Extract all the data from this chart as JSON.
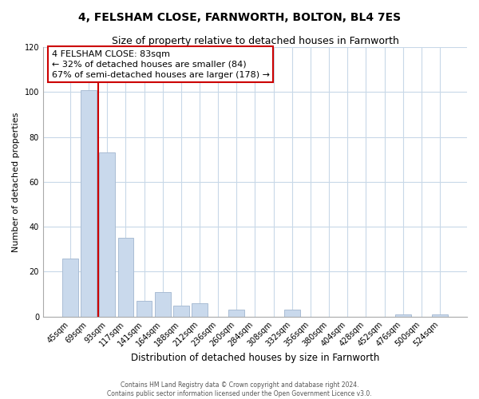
{
  "title": "4, FELSHAM CLOSE, FARNWORTH, BOLTON, BL4 7ES",
  "subtitle": "Size of property relative to detached houses in Farnworth",
  "xlabel": "Distribution of detached houses by size in Farnworth",
  "ylabel": "Number of detached properties",
  "bar_labels": [
    "45sqm",
    "69sqm",
    "93sqm",
    "117sqm",
    "141sqm",
    "164sqm",
    "188sqm",
    "212sqm",
    "236sqm",
    "260sqm",
    "284sqm",
    "308sqm",
    "332sqm",
    "356sqm",
    "380sqm",
    "404sqm",
    "428sqm",
    "452sqm",
    "476sqm",
    "500sqm",
    "524sqm"
  ],
  "bar_values": [
    26,
    101,
    73,
    35,
    7,
    11,
    5,
    6,
    0,
    3,
    0,
    0,
    3,
    0,
    0,
    0,
    0,
    0,
    1,
    0,
    1
  ],
  "bar_color": "#c9d9ec",
  "bar_edge_color": "#aabdd4",
  "vline_color": "#cc0000",
  "vline_x": 1.5,
  "ylim": [
    0,
    120
  ],
  "yticks": [
    0,
    20,
    40,
    60,
    80,
    100,
    120
  ],
  "annotation_title": "4 FELSHAM CLOSE: 83sqm",
  "annotation_line1": "← 32% of detached houses are smaller (84)",
  "annotation_line2": "67% of semi-detached houses are larger (178) →",
  "annotation_box_color": "#ffffff",
  "annotation_box_edge": "#cc0000",
  "footer1": "Contains HM Land Registry data © Crown copyright and database right 2024.",
  "footer2": "Contains public sector information licensed under the Open Government Licence v3.0.",
  "bg_color": "#ffffff",
  "grid_color": "#c8d8e8",
  "title_fontsize": 10,
  "subtitle_fontsize": 9,
  "ylabel_fontsize": 8,
  "xlabel_fontsize": 8.5,
  "tick_fontsize": 7,
  "annot_fontsize": 8,
  "footer_fontsize": 5.5
}
